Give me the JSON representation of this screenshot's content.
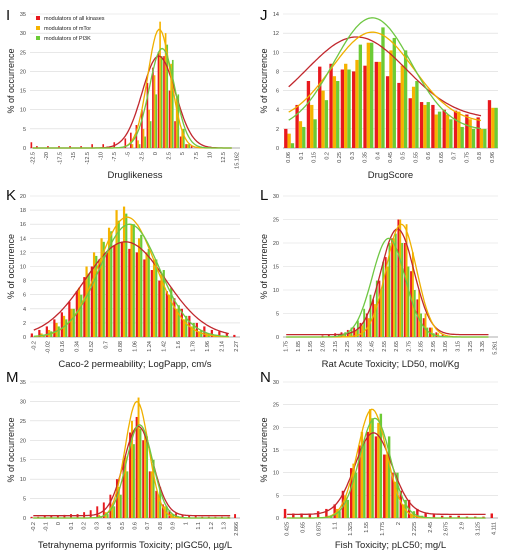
{
  "figure": {
    "colors": {
      "all_kinases": "#e8191e",
      "mtor": "#f5b300",
      "pi3k": "#6ccb35",
      "fit_all": "#c1272d",
      "fit_mtor": "#efb000",
      "fit_pi3k": "#6fc743",
      "dark_bar": "#8b3a1a",
      "pink_fill": "#f4b7c2",
      "grid": "#d9d9d9"
    },
    "legend": [
      {
        "label": "modulators of all kinases",
        "color": "#e8191e"
      },
      {
        "label": "modulators of mTor",
        "color": "#f5b300"
      },
      {
        "label": "modulators of PI3K",
        "color": "#6ccb35"
      }
    ]
  },
  "chart_data": [
    {
      "panel": "I",
      "type": "bar",
      "xlabel": "Druglikeness",
      "ylabel": "% of occurrence",
      "ylim": [
        0,
        35
      ],
      "yticks": [
        "0",
        "5",
        "10",
        "15",
        "20",
        "25",
        "30",
        "35"
      ],
      "xticks": [
        "-22.5",
        "-20",
        "-17.5",
        "-15",
        "-12.5",
        "-10",
        "-7.5",
        "-5",
        "-2.5",
        "0",
        "2.5",
        "5",
        "7.5",
        "10",
        "12.5",
        "15.162"
      ],
      "categories": [
        "-22",
        "-21",
        "-20",
        "-19",
        "-18",
        "-17",
        "-16",
        "-15",
        "-14",
        "-13",
        "-12",
        "-11",
        "-10",
        "-9",
        "-8",
        "-7",
        "-6",
        "-5",
        "-4",
        "-3",
        "-2",
        "-1",
        "0",
        "1",
        "2",
        "3",
        "4",
        "5",
        "6",
        "7",
        "8",
        "9",
        "10",
        "11",
        "12",
        "13",
        "14",
        "15"
      ],
      "series": [
        {
          "name": "modulators of all kinases",
          "values": [
            1.5,
            0.5,
            0,
            0.5,
            0,
            0.5,
            0,
            0.5,
            0,
            0.5,
            0,
            1,
            0,
            1,
            0,
            1.5,
            0,
            2.5,
            4,
            6,
            10,
            17,
            21,
            25,
            24,
            15,
            7,
            3,
            1,
            0.5,
            0.3,
            0,
            0.2,
            0,
            0,
            0,
            0,
            0
          ]
        },
        {
          "name": "modulators of mTor",
          "values": [
            0,
            0,
            0,
            0,
            0,
            0,
            0,
            0,
            0,
            0,
            0,
            0,
            0,
            0,
            0,
            0,
            0,
            0,
            1,
            2,
            5,
            10,
            19,
            33,
            30,
            22,
            13,
            5,
            1,
            0,
            0,
            0,
            0,
            0,
            0,
            0,
            0,
            0
          ]
        },
        {
          "name": "modulators of PI3K",
          "values": [
            0,
            0,
            0,
            0,
            0,
            0,
            0,
            0,
            0,
            0,
            0,
            0,
            0,
            0,
            0,
            0,
            0,
            0,
            0,
            1,
            3,
            7,
            14,
            24,
            27,
            23,
            14,
            5,
            1,
            0,
            0,
            0,
            0,
            0,
            0,
            0,
            0,
            0
          ]
        }
      ],
      "fits": [
        {
          "mean": 0.8,
          "sd": 3.0,
          "peak": 24
        },
        {
          "mean": 0.9,
          "sd": 2.1,
          "peak": 31
        },
        {
          "mean": 1.4,
          "sd": 2.3,
          "peak": 26
        }
      ],
      "legend_position": "top-left"
    },
    {
      "panel": "J",
      "type": "bar",
      "xlabel": "DrugScore",
      "ylabel": "% of occurrence",
      "ylim": [
        0,
        14
      ],
      "yticks": [
        "0",
        "2",
        "4",
        "6",
        "8",
        "10",
        "12",
        "14"
      ],
      "xticks": [
        "0.06",
        "0.1",
        "0.15",
        "0.2",
        "0.25",
        "0.3",
        "0.35",
        "0.4",
        "0.45",
        "0.5",
        "0.55",
        "0.6",
        "0.65",
        "0.7",
        "0.75",
        "0.8",
        "0.96"
      ],
      "categories": [
        "0.05",
        "0.1",
        "0.15",
        "0.2",
        "0.25",
        "0.3",
        "0.35",
        "0.4",
        "0.45",
        "0.5",
        "0.55",
        "0.6",
        "0.65",
        "0.7",
        "0.75",
        "0.8",
        "0.85",
        "0.9",
        "0.96"
      ],
      "series": [
        {
          "name": "modulators of all kinases",
          "values": [
            2,
            4.5,
            7,
            8.5,
            8.8,
            8.2,
            8,
            8.6,
            9,
            7.5,
            6.8,
            5.2,
            4.8,
            4.5,
            4,
            3.9,
            3.5,
            3.2,
            5
          ]
        },
        {
          "name": "modulators of mTor",
          "values": [
            1.5,
            2.8,
            4.5,
            6,
            7.5,
            8.8,
            9.2,
            11,
            9,
            10.2,
            8.6,
            6.4,
            4.5,
            3.5,
            3.5,
            3.8,
            3,
            2,
            4.2
          ]
        },
        {
          "name": "modulators of PI3K",
          "values": [
            0.5,
            2.2,
            3,
            5,
            7,
            8.2,
            10.8,
            11,
            12.6,
            11.5,
            10.2,
            7,
            4.8,
            3.8,
            3,
            2.2,
            2,
            2,
            4.2
          ]
        }
      ],
      "fits": [
        {
          "mean": 0.35,
          "sd": 0.22,
          "peak": 8.6,
          "base": 3.0
        },
        {
          "mean": 0.42,
          "sd": 0.18,
          "peak": 9.5,
          "base": 2.6
        },
        {
          "mean": 0.42,
          "sd": 0.17,
          "peak": 11.8,
          "base": 1.8
        }
      ]
    },
    {
      "panel": "K",
      "type": "bar",
      "xlabel": "Caco-2 permeability; LogPapp, cm/s",
      "ylabel": "% of occurrence",
      "ylim": [
        0,
        20
      ],
      "yticks": [
        "0",
        "2",
        "4",
        "6",
        "8",
        "10",
        "12",
        "14",
        "16",
        "18",
        "20"
      ],
      "xticks": [
        "-0.2",
        "-0.02",
        "0.16",
        "0.34",
        "0.52",
        "0.7",
        "0.88",
        "1.06",
        "1.24",
        "1.42",
        "1.6",
        "1.78",
        "1.96",
        "2.14",
        "2.27"
      ],
      "categories": [
        "-0.2",
        "-0.11",
        "-0.02",
        "0.07",
        "0.16",
        "0.25",
        "0.34",
        "0.43",
        "0.52",
        "0.61",
        "0.7",
        "0.79",
        "0.88",
        "0.97",
        "1.06",
        "1.15",
        "1.24",
        "1.33",
        "1.42",
        "1.51",
        "1.6",
        "1.69",
        "1.78",
        "1.87",
        "1.96",
        "2.05",
        "2.14",
        "2.27"
      ],
      "series": [
        {
          "name": "modulators of all kinases",
          "values": [
            0.5,
            1,
            1.5,
            2.5,
            3.5,
            5,
            6.5,
            8.5,
            10,
            11,
            12,
            13,
            13.5,
            12.5,
            12,
            11,
            9.5,
            8,
            6.5,
            5.5,
            4,
            3,
            2,
            1.5,
            1,
            0.8,
            0.5,
            0.3
          ]
        },
        {
          "name": "modulators of mTor",
          "values": [
            0,
            0.5,
            1,
            2,
            3,
            4,
            7,
            10,
            12,
            14,
            15.5,
            18,
            18.5,
            16,
            14,
            12,
            11,
            9,
            6,
            4,
            2.5,
            1.5,
            0.8,
            0.5,
            0.2,
            0,
            0,
            0
          ]
        },
        {
          "name": "modulators of PI3K",
          "values": [
            0,
            0.3,
            0.8,
            1.5,
            2.5,
            4,
            6,
            9,
            11.5,
            13.5,
            15,
            16.5,
            17.5,
            16,
            14.5,
            12.5,
            11,
            9.5,
            7,
            4.5,
            3,
            2,
            1,
            0.5,
            0.3,
            0,
            0,
            0
          ]
        }
      ],
      "fits": [
        {
          "mean": 0.9,
          "sd": 0.48,
          "peak": 13.5
        },
        {
          "mean": 0.92,
          "sd": 0.34,
          "peak": 17
        },
        {
          "mean": 0.95,
          "sd": 0.36,
          "peak": 16
        }
      ]
    },
    {
      "panel": "L",
      "type": "bar",
      "xlabel": "Rat Acute Toxicity; LD50, mol/Kg",
      "ylabel": "% of occurrence",
      "ylim": [
        0,
        30
      ],
      "yticks": [
        "0",
        "5",
        "10",
        "15",
        "20",
        "25",
        "30"
      ],
      "xticks": [
        "1.75",
        "1.85",
        "1.95",
        "2.05",
        "2.15",
        "2.25",
        "2.35",
        "2.45",
        "2.55",
        "2.65",
        "2.75",
        "2.85",
        "2.95",
        "3.05",
        "3.15",
        "3.25",
        "3.35",
        "5.261"
      ],
      "categories": [
        "1.75",
        "1.8",
        "1.85",
        "1.9",
        "1.95",
        "2.0",
        "2.05",
        "2.1",
        "2.15",
        "2.2",
        "2.25",
        "2.3",
        "2.35",
        "2.4",
        "2.45",
        "2.5",
        "2.55",
        "2.6",
        "2.65",
        "2.7",
        "2.75",
        "2.8",
        "2.85",
        "2.9",
        "2.95",
        "3.0",
        "3.05",
        "3.1",
        "3.15",
        "3.2",
        "3.25",
        "3.3",
        "3.35",
        "5.261"
      ],
      "series": [
        {
          "name": "modulators of all kinases",
          "values": [
            0,
            0,
            0,
            0,
            0,
            0,
            0.3,
            0.5,
            0.8,
            1,
            1.5,
            2,
            3,
            5,
            8,
            12,
            17,
            21,
            25,
            20,
            14,
            8,
            4,
            2,
            1,
            0.5,
            0.3,
            0,
            0,
            0,
            0,
            0,
            0,
            0
          ]
        },
        {
          "name": "modulators of mTor",
          "values": [
            0,
            0,
            0,
            0,
            0,
            0,
            0,
            0,
            0,
            0.5,
            1,
            1.5,
            2.5,
            4,
            7,
            10,
            15,
            21,
            25,
            24,
            18,
            10,
            5,
            2,
            0.8,
            0,
            0,
            0,
            0,
            0,
            0,
            0,
            0,
            0
          ]
        },
        {
          "name": "modulators of PI3K",
          "values": [
            0,
            0,
            0,
            0,
            0,
            0,
            0,
            0,
            0.5,
            1,
            2,
            3.5,
            6,
            9,
            12,
            16,
            20,
            22,
            20,
            15,
            10,
            5,
            2,
            0.8,
            0,
            0,
            0,
            0,
            0,
            0,
            0,
            0,
            0,
            0
          ]
        }
      ],
      "fits": [
        {
          "mean": 2.63,
          "sd": 0.13,
          "peak": 22.5,
          "base": 0.5
        },
        {
          "mean": 2.66,
          "sd": 0.12,
          "peak": 24
        },
        {
          "mean": 2.56,
          "sd": 0.13,
          "peak": 21
        }
      ]
    },
    {
      "panel": "M",
      "type": "bar",
      "xlabel": "Tetrahynema pyriformis Toxicity; pIGC50, µg/L",
      "ylabel": "% of occurrence",
      "ylim": [
        0,
        35
      ],
      "yticks": [
        "0",
        "5",
        "10",
        "15",
        "20",
        "25",
        "30",
        "35"
      ],
      "xticks": [
        "-0.2",
        "-0.1",
        "0",
        "0.1",
        "0.2",
        "0.3",
        "0.4",
        "0.5",
        "0.6",
        "0.7",
        "0.8",
        "0.9",
        "1",
        "1.1",
        "1.2",
        "1.3",
        "2.866"
      ],
      "categories": [
        "-0.2",
        "-0.15",
        "-0.1",
        "-0.05",
        "0",
        "0.05",
        "0.1",
        "0.15",
        "0.2",
        "0.25",
        "0.3",
        "0.35",
        "0.4",
        "0.45",
        "0.5",
        "0.55",
        "0.6",
        "0.65",
        "0.7",
        "0.75",
        "0.8",
        "0.85",
        "0.9",
        "0.95",
        "1",
        "1.05",
        "1.1",
        "1.15",
        "1.2",
        "1.25",
        "1.3",
        "2.866"
      ],
      "series": [
        {
          "name": "modulators of all kinases",
          "values": [
            0.3,
            0.3,
            0.5,
            0.5,
            0.5,
            0.8,
            1,
            1,
            1.5,
            2,
            3,
            4,
            6,
            10,
            15,
            22,
            26,
            20,
            12,
            7,
            3.5,
            2,
            1.2,
            0.8,
            0.5,
            0.5,
            0.3,
            0.3,
            0.3,
            0.3,
            0.3,
            1
          ]
        },
        {
          "name": "modulators of mTor",
          "values": [
            0,
            0,
            0,
            0,
            0,
            0,
            0,
            0,
            0,
            0,
            0.8,
            1.5,
            3,
            8,
            16,
            25,
            31,
            22,
            12,
            6,
            3,
            1,
            0.5,
            0,
            0,
            0,
            0,
            0,
            0,
            0,
            0,
            0
          ]
        },
        {
          "name": "modulators of PI3K",
          "values": [
            0,
            0,
            0,
            0,
            0,
            0,
            0,
            0,
            0,
            0,
            0.5,
            1,
            3,
            6,
            12,
            19,
            23,
            21,
            15,
            8,
            3,
            1,
            0.3,
            0,
            0,
            0,
            0,
            0,
            0,
            0,
            0,
            0
          ]
        }
      ],
      "fits": [
        {
          "mean": 0.6,
          "sd": 0.11,
          "peak": 23,
          "base": 0.6
        },
        {
          "mean": 0.59,
          "sd": 0.09,
          "peak": 30
        },
        {
          "mean": 0.61,
          "sd": 0.1,
          "peak": 24
        }
      ]
    },
    {
      "panel": "N",
      "type": "bar",
      "xlabel": "Fish Toxicity; pLC50; mg/L",
      "ylabel": "% of occurrence",
      "ylim": [
        0,
        30
      ],
      "yticks": [
        "0",
        "5",
        "10",
        "15",
        "20",
        "25",
        "30"
      ],
      "xticks": [
        "0.425",
        "0.65",
        "0.875",
        "1.1",
        "1.325",
        "1.55",
        "1.775",
        "2",
        "2.225",
        "2.45",
        "2.675",
        "2.9",
        "3.125",
        "4.111"
      ],
      "categories": [
        "0.425",
        "0.5375",
        "0.65",
        "0.7625",
        "0.875",
        "0.9875",
        "1.1",
        "1.2125",
        "1.325",
        "1.4375",
        "1.55",
        "1.6625",
        "1.775",
        "1.8875",
        "2",
        "2.1125",
        "2.225",
        "2.3375",
        "2.45",
        "2.5625",
        "2.675",
        "2.7875",
        "2.9",
        "3.0125",
        "3.125",
        "4.111"
      ],
      "series": [
        {
          "name": "modulators of all kinases",
          "values": [
            2,
            1,
            1,
            1,
            1.5,
            2,
            3,
            6,
            11,
            16,
            19,
            18,
            14,
            10,
            6,
            4,
            2,
            1,
            0.8,
            0.5,
            0.5,
            0.5,
            0.3,
            0.3,
            0.3,
            1
          ]
        },
        {
          "name": "modulators of mTor",
          "values": [
            0,
            0,
            0,
            0,
            0,
            0.5,
            2,
            5,
            12,
            19,
            24,
            21,
            14,
            8,
            3,
            1,
            0.5,
            0,
            0,
            0,
            0,
            0,
            0,
            0,
            0,
            0
          ]
        },
        {
          "name": "modulators of PI3K",
          "values": [
            0,
            0,
            0,
            0,
            0,
            0.5,
            1.5,
            4,
            10,
            17,
            22,
            23,
            18,
            10,
            4,
            1.5,
            0.5,
            0,
            0,
            0,
            0,
            0,
            0,
            0,
            0,
            0
          ]
        }
      ],
      "fits": [
        {
          "mean": 1.6,
          "sd": 0.25,
          "peak": 18,
          "base": 0.8
        },
        {
          "mean": 1.58,
          "sd": 0.2,
          "peak": 24
        },
        {
          "mean": 1.62,
          "sd": 0.21,
          "peak": 22
        }
      ]
    }
  ]
}
